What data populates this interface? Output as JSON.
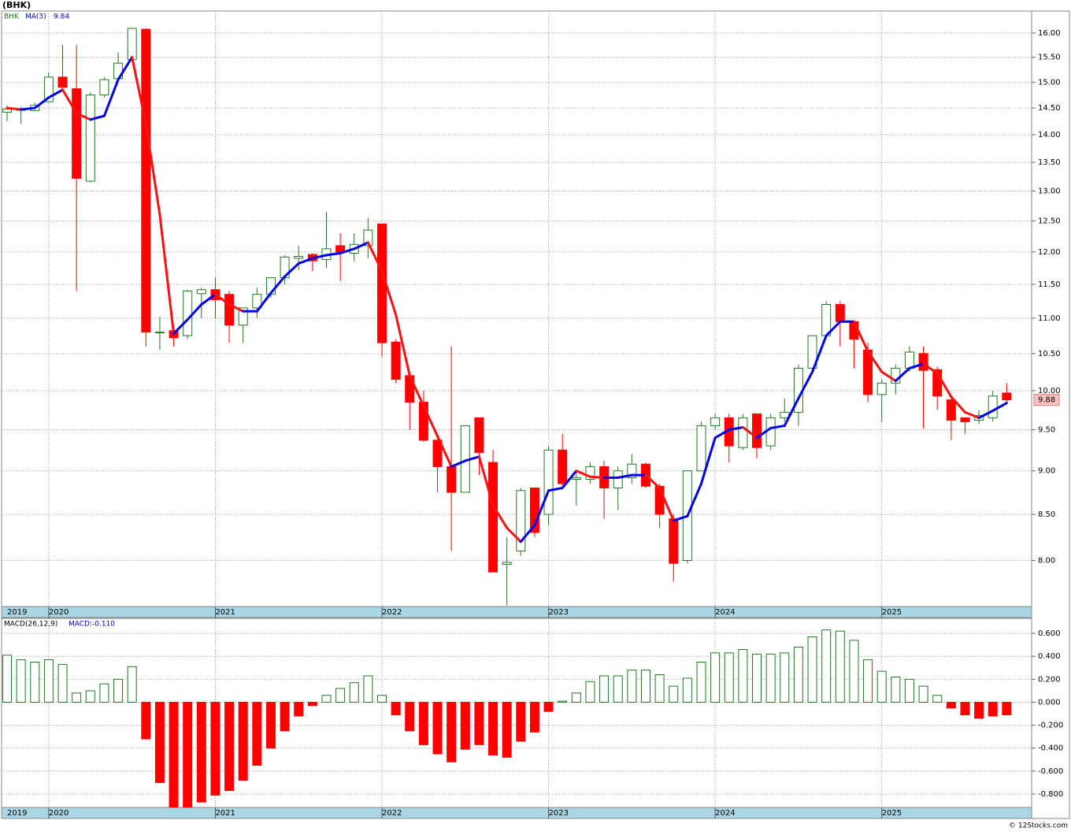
{
  "chart_data": [
    {
      "type": "candlestick",
      "title": "(BHK)",
      "symbol": "BHK",
      "categories": [
        "2019",
        null,
        null,
        "2020",
        null,
        null,
        null,
        null,
        null,
        null,
        null,
        null,
        null,
        null,
        null,
        "2021",
        null,
        null,
        null,
        null,
        null,
        null,
        null,
        null,
        null,
        null,
        null,
        "2022",
        null,
        null,
        null,
        null,
        null,
        null,
        null,
        null,
        null,
        null,
        null,
        "2023",
        null,
        null,
        null,
        null,
        null,
        null,
        null,
        null,
        null,
        null,
        null,
        "2024",
        null,
        null,
        null,
        null,
        null,
        null,
        null,
        null,
        null,
        null,
        null,
        "2025",
        null,
        null,
        null,
        null,
        null,
        null,
        null,
        null,
        null
      ],
      "open": [
        14.42,
        14.47,
        14.45,
        14.62,
        15.1,
        14.87,
        13.17,
        14.75,
        15.07,
        15.45,
        16.08,
        10.8,
        10.82,
        10.75,
        11.36,
        11.42,
        11.35,
        10.9,
        11.15,
        11.35,
        11.6,
        11.9,
        11.96,
        11.88,
        12.1,
        11.98,
        12.1,
        12.45,
        10.66,
        10.2,
        9.85,
        9.37,
        9.05,
        8.75,
        9.65,
        9.1,
        7.96,
        8.1,
        8.8,
        8.5,
        9.25,
        8.9,
        8.9,
        9.05,
        8.8,
        8.92,
        9.08,
        8.82,
        8.45,
        8.0,
        9.0,
        9.55,
        9.65,
        9.28,
        9.7,
        9.3,
        9.65,
        9.72,
        10.3,
        10.75,
        11.2,
        10.95,
        10.55,
        9.95,
        10.1,
        10.3,
        10.5,
        10.28,
        9.88,
        9.65,
        9.62,
        9.65,
        9.97
      ],
      "high": [
        14.55,
        14.52,
        14.6,
        15.2,
        15.75,
        15.75,
        14.8,
        15.1,
        15.6,
        16.1,
        16.1,
        11.02,
        10.85,
        11.42,
        11.45,
        11.6,
        11.4,
        11.15,
        11.45,
        11.6,
        11.95,
        12.1,
        11.98,
        12.65,
        12.3,
        12.3,
        12.55,
        12.45,
        10.7,
        10.25,
        10.0,
        9.4,
        10.6,
        9.55,
        9.65,
        9.25,
        8.25,
        8.8,
        8.8,
        9.3,
        9.45,
        9.0,
        9.1,
        9.12,
        9.05,
        9.2,
        9.1,
        8.85,
        8.5,
        9.0,
        9.6,
        9.7,
        9.7,
        9.7,
        9.7,
        9.7,
        9.9,
        10.35,
        10.75,
        11.25,
        11.25,
        10.95,
        10.65,
        10.15,
        10.35,
        10.6,
        10.6,
        10.32,
        9.9,
        9.65,
        9.75,
        10.0,
        10.1
      ],
      "low": [
        14.25,
        14.2,
        14.45,
        14.6,
        14.85,
        11.4,
        13.15,
        14.7,
        15.0,
        15.4,
        10.6,
        10.55,
        10.6,
        10.7,
        11.0,
        11.0,
        10.65,
        10.65,
        11.0,
        11.3,
        11.5,
        11.72,
        11.7,
        11.75,
        11.55,
        11.85,
        11.9,
        10.45,
        10.1,
        9.5,
        9.35,
        8.75,
        8.1,
        8.75,
        8.95,
        7.88,
        7.54,
        8.05,
        8.25,
        8.38,
        8.8,
        8.6,
        8.85,
        8.45,
        8.55,
        8.85,
        8.8,
        8.35,
        7.78,
        7.97,
        9.0,
        9.5,
        9.1,
        9.25,
        9.15,
        9.25,
        9.6,
        9.55,
        10.25,
        10.7,
        10.6,
        10.3,
        9.85,
        9.6,
        9.95,
        10.25,
        9.52,
        9.75,
        9.37,
        9.45,
        9.57,
        9.6,
        9.85
      ],
      "close": [
        14.48,
        14.47,
        14.55,
        15.1,
        14.9,
        13.22,
        14.75,
        15.05,
        15.38,
        16.1,
        10.8,
        10.8,
        10.72,
        11.4,
        11.42,
        11.27,
        10.9,
        11.15,
        11.35,
        11.6,
        11.92,
        11.93,
        11.86,
        12.05,
        12.0,
        12.12,
        12.35,
        10.65,
        10.15,
        9.85,
        9.37,
        9.05,
        8.75,
        9.55,
        9.22,
        7.88,
        7.98,
        8.77,
        8.3,
        9.25,
        8.85,
        8.92,
        9.05,
        8.8,
        9.0,
        9.08,
        8.82,
        8.5,
        7.97,
        9.0,
        9.55,
        9.65,
        9.3,
        9.65,
        9.28,
        9.65,
        9.72,
        10.3,
        10.75,
        11.2,
        10.95,
        10.7,
        9.95,
        10.1,
        10.3,
        10.52,
        10.27,
        9.93,
        9.62,
        9.6,
        9.68,
        9.93,
        9.88
      ],
      "up_color": "#1f7a1f",
      "down_color": "#ff0000",
      "ma": {
        "name": "MA(3)",
        "up_color": "#0000ee",
        "down_color": "#ff1010",
        "values": [
          14.5,
          14.47,
          14.5,
          14.7,
          14.85,
          14.4,
          14.28,
          14.35,
          15.05,
          15.5,
          14.2,
          12.6,
          10.78,
          10.98,
          11.2,
          11.35,
          11.2,
          11.1,
          11.1,
          11.37,
          11.62,
          11.82,
          11.9,
          11.95,
          11.98,
          12.05,
          12.15,
          11.7,
          11.05,
          10.2,
          9.8,
          9.42,
          9.05,
          9.12,
          9.17,
          8.6,
          8.35,
          8.2,
          8.38,
          8.77,
          8.8,
          9.0,
          8.93,
          8.92,
          8.92,
          8.95,
          8.95,
          8.8,
          8.43,
          8.48,
          8.85,
          9.4,
          9.5,
          9.53,
          9.4,
          9.52,
          9.55,
          9.9,
          10.25,
          10.75,
          10.95,
          10.95,
          10.53,
          10.25,
          10.13,
          10.3,
          10.36,
          10.23,
          9.92,
          9.72,
          9.65,
          9.74,
          9.84
        ]
      },
      "log_scale": true,
      "grid": true,
      "ylim": [
        7.53,
        16.47
      ],
      "yticks": [
        {
          "value": 8,
          "label": "8.00"
        },
        {
          "value": 8.5,
          "label": "8.50"
        },
        {
          "value": 9,
          "label": "9.00"
        },
        {
          "value": 9.5,
          "label": "9.50"
        },
        {
          "value": 10,
          "label": "10.00"
        },
        {
          "value": 10.5,
          "label": "10.50"
        },
        {
          "value": 11,
          "label": "11.00"
        },
        {
          "value": 11.5,
          "label": "11.50"
        },
        {
          "value": 12,
          "label": "12.00"
        },
        {
          "value": 12.5,
          "label": "12.50"
        },
        {
          "value": 13,
          "label": "13.00"
        },
        {
          "value": 13.5,
          "label": "13.50"
        },
        {
          "value": 14,
          "label": "14.00"
        },
        {
          "value": 14.5,
          "label": "14.50"
        },
        {
          "value": 15,
          "label": "15.00"
        },
        {
          "value": 15.5,
          "label": "15.50"
        },
        {
          "value": 16,
          "label": "16.00"
        }
      ]
    },
    {
      "type": "bar",
      "title": "MACD(26,12,9)",
      "current_label": "MACD:-0.110",
      "categories": [
        "2019",
        null,
        null,
        "2020",
        null,
        null,
        null,
        null,
        null,
        null,
        null,
        null,
        null,
        null,
        null,
        "2021",
        null,
        null,
        null,
        null,
        null,
        null,
        null,
        null,
        null,
        null,
        null,
        "2022",
        null,
        null,
        null,
        null,
        null,
        null,
        null,
        null,
        null,
        null,
        null,
        "2023",
        null,
        null,
        null,
        null,
        null,
        null,
        null,
        null,
        null,
        null,
        null,
        "2024",
        null,
        null,
        null,
        null,
        null,
        null,
        null,
        null,
        null,
        null,
        null,
        "2025",
        null,
        null,
        null,
        null,
        null,
        null,
        null,
        null,
        null
      ],
      "values": [
        0.41,
        0.37,
        0.35,
        0.37,
        0.33,
        0.08,
        0.1,
        0.16,
        0.2,
        0.31,
        -0.32,
        -0.7,
        -0.93,
        -0.93,
        -0.87,
        -0.81,
        -0.77,
        -0.68,
        -0.55,
        -0.4,
        -0.25,
        -0.12,
        -0.03,
        0.06,
        0.12,
        0.17,
        0.23,
        0.06,
        -0.11,
        -0.25,
        -0.37,
        -0.45,
        -0.52,
        -0.41,
        -0.37,
        -0.46,
        -0.48,
        -0.34,
        -0.26,
        -0.08,
        0.01,
        0.08,
        0.18,
        0.23,
        0.23,
        0.28,
        0.28,
        0.24,
        0.14,
        0.21,
        0.35,
        0.43,
        0.43,
        0.46,
        0.42,
        0.42,
        0.43,
        0.48,
        0.57,
        0.63,
        0.62,
        0.54,
        0.37,
        0.27,
        0.22,
        0.2,
        0.14,
        0.06,
        -0.05,
        -0.11,
        -0.14,
        -0.12,
        -0.11
      ],
      "up_color": "#1f7a1f",
      "down_color": "#ff0000",
      "grid": true,
      "ylim": [
        -0.917,
        0.731
      ],
      "yticks": [
        {
          "value": 0.6,
          "label": "0.600"
        },
        {
          "value": 0.4,
          "label": "0.400"
        },
        {
          "value": 0.2,
          "label": "0.200"
        },
        {
          "value": 0,
          "label": "0.000"
        },
        {
          "value": -0.2,
          "label": "-0.200"
        },
        {
          "value": -0.4,
          "label": "-0.400"
        },
        {
          "value": -0.6,
          "label": "-0.600"
        },
        {
          "value": -0.8,
          "label": "-0.800"
        }
      ]
    }
  ],
  "footer": "© 12Stocks.com"
}
